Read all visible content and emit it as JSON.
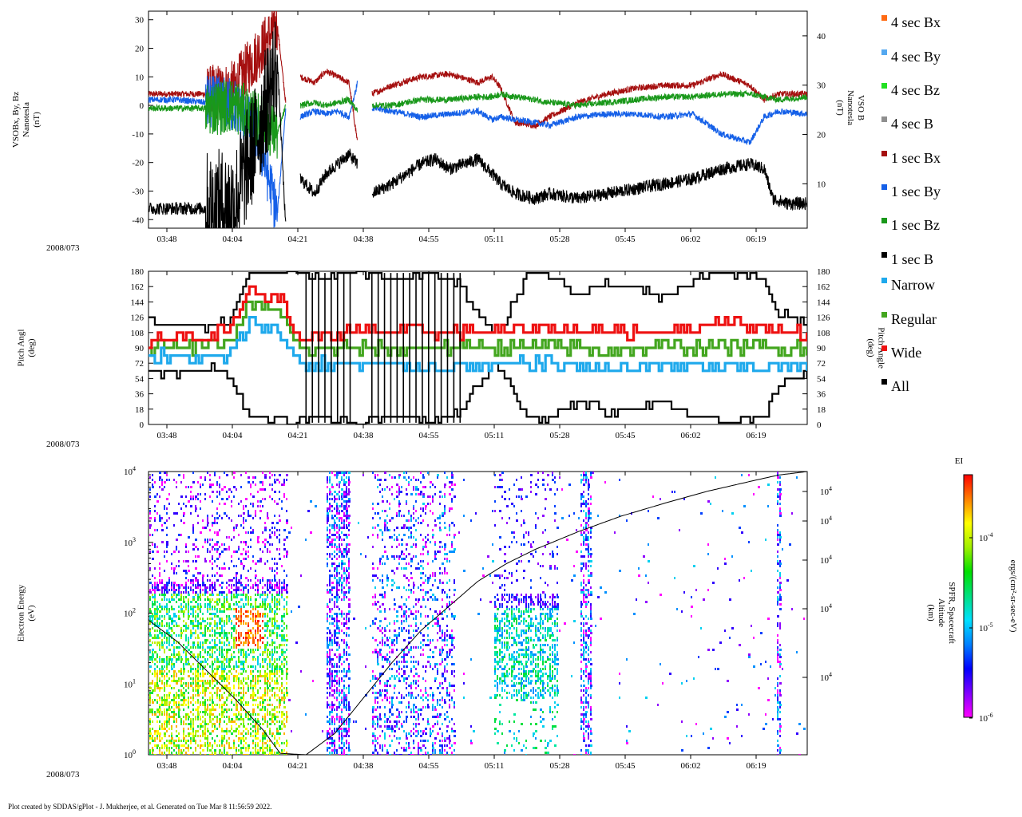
{
  "date_label": "2008/073",
  "footer": "Plot created by SDDAS/gPlot - J. Mukherjee, et al.  Generated on Tue Mar 8 11:56:59 2022.",
  "time_ticks": [
    "03:48",
    "04:04",
    "04:21",
    "04:38",
    "04:55",
    "05:11",
    "05:28",
    "05:45",
    "06:02",
    "06:19"
  ],
  "legend": [
    {
      "label": "4 sec Bx",
      "color": "#ff6a13"
    },
    {
      "label": "4 sec By",
      "color": "#54a8f0"
    },
    {
      "label": "4 sec Bz",
      "color": "#22e022"
    },
    {
      "label": "4 sec B",
      "color": "#8f8f8f"
    },
    {
      "label": "1 sec Bx",
      "color": "#a50f0f"
    },
    {
      "label": "1 sec By",
      "color": "#1560e8"
    },
    {
      "label": "1 sec Bz",
      "color": "#19981a"
    },
    {
      "label": "1 sec B",
      "color": "#000000"
    },
    {
      "label": "Narrow",
      "color": "#1ea9ec"
    },
    {
      "label": "Regular",
      "color": "#43a61f"
    },
    {
      "label": "Wide",
      "color": "#ee1111"
    },
    {
      "label": "All",
      "color": "#000000"
    }
  ],
  "colorbar": {
    "title": "EI",
    "label": "ergs/(cm²-sr-sec-eV)",
    "ticks": [
      {
        "base": "10",
        "exp": "-4"
      },
      {
        "base": "10",
        "exp": "-5"
      },
      {
        "base": "10",
        "exp": "-6"
      }
    ]
  },
  "chart_data": [
    {
      "type": "line",
      "ylabel_lines": [
        "VSOBx, By, Bz",
        "Nanotesla",
        "(nT)"
      ],
      "y2label_lines": [
        "VSO B",
        "Nanotesla",
        "(nT)"
      ],
      "y_ticks": [
        "30",
        "20",
        "10",
        "0",
        "-10",
        "-20",
        "-30",
        "-40"
      ],
      "y_range": [
        -43,
        33
      ],
      "y2_ticks": [
        "40",
        "30",
        "20",
        "10"
      ],
      "y2_range": [
        1,
        45
      ],
      "x_range_minutes": [
        0,
        230
      ],
      "gaps_minutes": [
        [
          48,
          53
        ],
        [
          73,
          78
        ]
      ],
      "series": [
        {
          "name": "1 sec Bx",
          "color": "#a50f0f",
          "axis": "left",
          "x": [
            0,
            10,
            20,
            30,
            38,
            45,
            48,
            53,
            58,
            62,
            66,
            70,
            73,
            78,
            85,
            95,
            105,
            115,
            120,
            123,
            128,
            135,
            140,
            150,
            160,
            170,
            180,
            190,
            200,
            210,
            215,
            220,
            230
          ],
          "y": [
            4,
            4,
            4,
            6,
            18,
            28,
            0,
            10,
            8,
            12,
            10,
            8,
            -13,
            4,
            7,
            10,
            11,
            8,
            10,
            6,
            -6,
            -7,
            -4,
            1,
            4,
            6,
            7,
            7,
            11,
            7,
            2,
            4,
            4
          ]
        },
        {
          "name": "1 sec By",
          "color": "#1560e8",
          "axis": "left",
          "x": [
            0,
            10,
            20,
            30,
            38,
            45,
            48,
            53,
            58,
            62,
            66,
            70,
            73,
            78,
            85,
            95,
            105,
            115,
            120,
            123,
            128,
            135,
            140,
            150,
            160,
            170,
            180,
            190,
            200,
            210,
            215,
            220,
            230
          ],
          "y": [
            2,
            2,
            1,
            0,
            -10,
            -38,
            0,
            -4,
            -2,
            -3,
            -2,
            -4,
            8,
            -1,
            -2,
            -4,
            -3,
            -2,
            -5,
            -4,
            -5,
            -6,
            -7,
            -4,
            -3,
            -3,
            -4,
            -3,
            -10,
            -13,
            -4,
            -2,
            -3
          ]
        },
        {
          "name": "1 sec Bz",
          "color": "#19981a",
          "axis": "left",
          "x": [
            0,
            10,
            20,
            30,
            38,
            45,
            48,
            53,
            58,
            62,
            66,
            70,
            73,
            78,
            85,
            95,
            105,
            115,
            120,
            123,
            128,
            135,
            140,
            150,
            160,
            170,
            180,
            190,
            200,
            210,
            215,
            220,
            230
          ],
          "y": [
            -1,
            -1,
            -1,
            0,
            -5,
            -10,
            0,
            0,
            1,
            0,
            1,
            2,
            -2,
            0,
            0,
            2,
            2,
            3,
            3,
            4,
            3,
            2,
            1,
            0,
            1,
            2,
            3,
            3,
            4,
            4,
            3,
            2,
            3
          ]
        },
        {
          "name": "1 sec B",
          "color": "#000000",
          "axis": "right",
          "x": [
            0,
            10,
            20,
            30,
            38,
            45,
            48,
            53,
            58,
            62,
            66,
            70,
            73,
            78,
            85,
            90,
            95,
            100,
            105,
            110,
            115,
            120,
            123,
            128,
            135,
            140,
            150,
            160,
            170,
            180,
            190,
            200,
            210,
            215,
            218,
            223,
            230
          ],
          "y": [
            5,
            5,
            5,
            6,
            20,
            35,
            0,
            11,
            8,
            12,
            14,
            16,
            14,
            8,
            10,
            12,
            14,
            15,
            13,
            14,
            15,
            12,
            10,
            8,
            7,
            8,
            7,
            8,
            9,
            10,
            11,
            13,
            14,
            13,
            7,
            6,
            6
          ]
        }
      ]
    },
    {
      "type": "line",
      "ylabel_lines": [
        "Pitch Angl",
        "(deg)"
      ],
      "y2label_lines": [
        "Pitch Angle",
        "(deg)"
      ],
      "y_ticks": [
        "180",
        "162",
        "144",
        "126",
        "108",
        "90",
        "72",
        "54",
        "36",
        "18",
        "0"
      ],
      "y_range": [
        0,
        180
      ],
      "series": [
        {
          "name": "All upper",
          "color": "#000000",
          "x": [
            0,
            20,
            28,
            35,
            45,
            48,
            53,
            60,
            66,
            70,
            73,
            78,
            85,
            100,
            108,
            115,
            120,
            123,
            128,
            133,
            138,
            142,
            150,
            160,
            170,
            180,
            190,
            200,
            210,
            215,
            220,
            230
          ],
          "y": [
            120,
            115,
            120,
            180,
            180,
            180,
            180,
            170,
            180,
            180,
            180,
            180,
            170,
            180,
            165,
            130,
            110,
            110,
            150,
            180,
            180,
            170,
            150,
            165,
            160,
            150,
            170,
            180,
            180,
            170,
            130,
            120
          ]
        },
        {
          "name": "All lower",
          "color": "#000000",
          "x": [
            0,
            20,
            28,
            35,
            45,
            48,
            53,
            60,
            66,
            70,
            73,
            78,
            85,
            100,
            108,
            115,
            120,
            123,
            128,
            133,
            138,
            142,
            150,
            160,
            170,
            180,
            190,
            200,
            210,
            215,
            220,
            230
          ],
          "y": [
            60,
            65,
            60,
            5,
            5,
            5,
            5,
            10,
            5,
            5,
            5,
            5,
            10,
            5,
            15,
            45,
            70,
            70,
            30,
            5,
            5,
            10,
            30,
            15,
            20,
            30,
            10,
            5,
            5,
            10,
            50,
            60
          ]
        },
        {
          "name": "Regular",
          "color": "#43a61f",
          "x": [
            0,
            20,
            28,
            35,
            45,
            53,
            70,
            78,
            100,
            115,
            123,
            140,
            160,
            180,
            200,
            230
          ],
          "y": [
            90,
            90,
            95,
            140,
            135,
            88,
            90,
            88,
            90,
            92,
            90,
            92,
            88,
            90,
            92,
            90
          ]
        },
        {
          "name": "Wide",
          "color": "#ee1111",
          "x": [
            0,
            20,
            28,
            35,
            45,
            53,
            70,
            78,
            100,
            115,
            123,
            140,
            160,
            180,
            200,
            230
          ],
          "y": [
            100,
            105,
            110,
            160,
            150,
            100,
            108,
            110,
            108,
            110,
            108,
            112,
            108,
            110,
            120,
            108
          ]
        },
        {
          "name": "Narrow",
          "color": "#1ea9ec",
          "x": [
            0,
            20,
            28,
            35,
            45,
            53,
            70,
            78,
            100,
            115,
            123,
            140,
            160,
            180,
            200,
            230
          ],
          "y": [
            80,
            78,
            80,
            120,
            110,
            72,
            70,
            70,
            68,
            66,
            70,
            72,
            66,
            68,
            66,
            70
          ]
        }
      ]
    },
    {
      "type": "heatmap",
      "ylabel_lines": [
        "Electron Energy",
        "(eV)"
      ],
      "y2label_lines": [
        "SPFR, Spacecraft",
        "Altitude",
        "(km)"
      ],
      "y_ticks": [
        {
          "base": "10",
          "exp": "4"
        },
        {
          "base": "10",
          "exp": "3"
        },
        {
          "base": "10",
          "exp": "2"
        },
        {
          "base": "10",
          "exp": "1"
        },
        {
          "base": "10",
          "exp": "0"
        }
      ],
      "y_range_log10": [
        0,
        4
      ],
      "y2_ticks": [
        {
          "base": "10",
          "exp": "4"
        },
        {
          "base": "10",
          "exp": "4"
        },
        {
          "base": "10",
          "exp": "4"
        },
        {
          "base": "10",
          "exp": "4"
        },
        {
          "base": "10",
          "exp": "4"
        }
      ],
      "active_intervals_minutes": [
        [
          0,
          48
        ],
        [
          62,
          70
        ],
        [
          78,
          107
        ],
        [
          120,
          143
        ],
        [
          150,
          155
        ],
        [
          219,
          221
        ]
      ],
      "altitude_curve": {
        "x": [
          0,
          10,
          20,
          30,
          40,
          46,
          55,
          65,
          75,
          85,
          95,
          105,
          115,
          125,
          135,
          150,
          165,
          180,
          195,
          210,
          220,
          230
        ],
        "y_log10": [
          1.9,
          1.6,
          1.2,
          0.8,
          0.35,
          0.02,
          0.0,
          0.3,
          0.8,
          1.3,
          1.75,
          2.1,
          2.45,
          2.7,
          2.9,
          3.15,
          3.37,
          3.55,
          3.72,
          3.86,
          3.95,
          4.0
        ]
      }
    }
  ]
}
